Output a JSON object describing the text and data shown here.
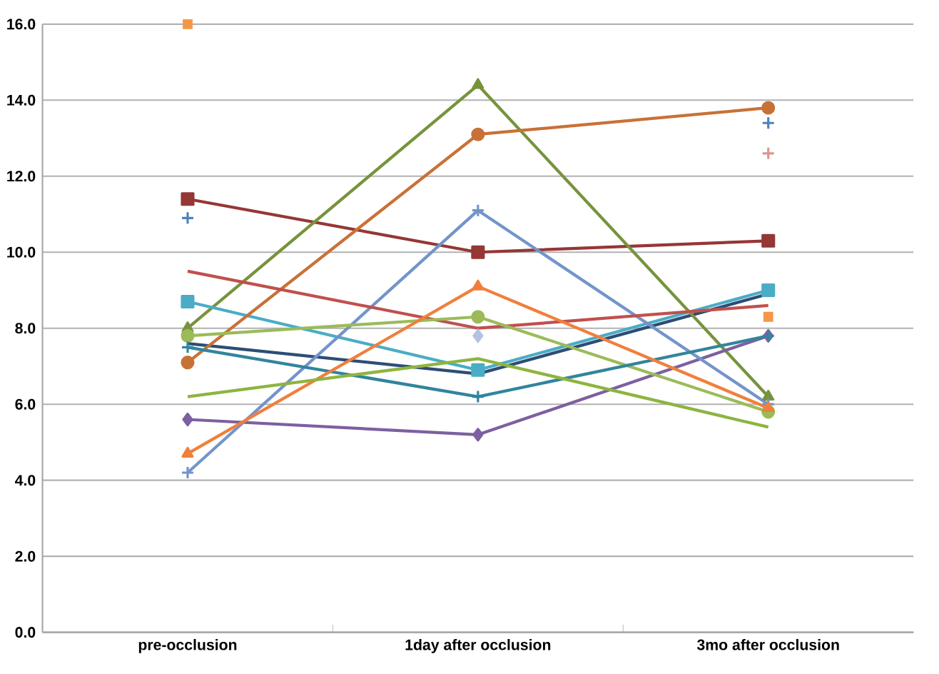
{
  "chart_data": {
    "type": "line",
    "categories": [
      "pre-occlusion",
      "1day after occlusion",
      "3mo after occlusion"
    ],
    "ylim": [
      0,
      16
    ],
    "yticks": [
      {
        "value": 0,
        "label": "0.0"
      },
      {
        "value": 2,
        "label": "2.0"
      },
      {
        "value": 4,
        "label": "4.0"
      },
      {
        "value": 6,
        "label": "6.0"
      },
      {
        "value": 8,
        "label": "8.0"
      },
      {
        "value": 10,
        "label": "10.0"
      },
      {
        "value": 12,
        "label": "12.0"
      },
      {
        "value": 14,
        "label": "14.0"
      },
      {
        "value": 16,
        "label": "16.0"
      }
    ],
    "grid": "y",
    "series": [
      {
        "color": "#2c4d75",
        "marker": "none",
        "values": [
          7.6,
          6.8,
          8.9
        ]
      },
      {
        "color": "#953735",
        "marker": "square",
        "values": [
          11.4,
          10.0,
          10.3
        ]
      },
      {
        "color": "#77933c",
        "marker": "triangle",
        "values": [
          8.0,
          14.4,
          6.2
        ]
      },
      {
        "color": "#7d60a0",
        "marker": "diamond",
        "values": [
          5.6,
          5.2,
          7.8
        ]
      },
      {
        "color": "#4bacc6",
        "marker": "square",
        "values": [
          8.7,
          6.9,
          9.0
        ]
      },
      {
        "color": "#c87137",
        "marker": "circle",
        "values": [
          7.1,
          13.1,
          13.8
        ]
      },
      {
        "color": "#7394cb",
        "marker": "cross",
        "values": [
          4.2,
          11.1,
          6.0
        ]
      },
      {
        "color": "#c0504d",
        "marker": "none",
        "values": [
          9.5,
          8.0,
          8.6
        ]
      },
      {
        "color": "#9bbb59",
        "marker": "circle",
        "values": [
          7.8,
          8.3,
          5.8
        ]
      },
      {
        "color": "#31859c",
        "marker": "cross",
        "values": [
          7.5,
          6.2,
          7.8
        ]
      },
      {
        "color": "#f07f3c",
        "marker": "triangle",
        "values": [
          4.7,
          9.1,
          5.9
        ]
      },
      {
        "color": "#8eb43f",
        "marker": "none",
        "values": [
          6.2,
          7.2,
          5.4
        ]
      },
      {
        "type": "scatter",
        "color": "#4f81bd",
        "marker": "cross",
        "values": [
          10.9,
          null,
          13.4
        ]
      },
      {
        "type": "scatter",
        "color": "#d99694",
        "marker": "cross",
        "values": [
          null,
          null,
          12.6
        ]
      },
      {
        "type": "scatter",
        "color": "#f79646",
        "marker": "square",
        "values": [
          16.0,
          null,
          8.3
        ]
      },
      {
        "type": "scatter",
        "color": "#b3c3e0",
        "marker": "diamond",
        "values": [
          null,
          7.8,
          null
        ]
      }
    ]
  }
}
